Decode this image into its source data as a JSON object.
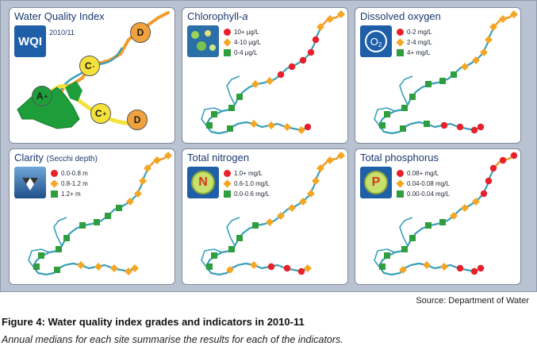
{
  "panels": {
    "wqi": {
      "title": "Water Quality Index",
      "icon_label": "WQI",
      "year": "2010/11",
      "grades": [
        {
          "label": "A",
          "sup": "+",
          "color": "#1e9e3a"
        },
        {
          "label": "C",
          "sup": "-",
          "color": "#f4e23a"
        },
        {
          "label": "C",
          "sup": "+",
          "color": "#f4e23a"
        },
        {
          "label": "D",
          "sup": "",
          "color": "#f2a23c"
        },
        {
          "label": "D",
          "sup": "",
          "color": "#f2a23c"
        }
      ]
    },
    "chlorophyll": {
      "title_main": "Chlorophyll-",
      "title_italic": "a",
      "legend": [
        "10+ μg/L",
        "4-10 μg/L",
        "0-4 μg/L"
      ]
    },
    "oxygen": {
      "title": "Dissolved oxygen",
      "icon_label": "O",
      "icon_sub": "2",
      "legend": [
        "0-2 mg/L",
        "2-4 mg/L",
        "4+ mg/L"
      ]
    },
    "clarity": {
      "title_main": "Clarity",
      "title_sub": "(Secchi depth)",
      "legend": [
        "0.0-0.8 m",
        "0.8-1.2 m",
        "1.2+ m"
      ]
    },
    "nitrogen": {
      "title": "Total nitrogen",
      "icon_label": "N",
      "legend": [
        "1.0+ mg/L",
        "0.6-1.0 mg/L",
        "0.0-0.6 mg/L"
      ]
    },
    "phosphorus": {
      "title": "Total phosphorus",
      "icon_label": "P",
      "legend": [
        "0.08+ mg/L",
        "0.04-0.08 mg/L",
        "0.00-0.04 mg/L"
      ]
    }
  },
  "colors": {
    "red": "#e8202a",
    "orange": "#f5a623",
    "green": "#2e9e3e",
    "river": "#3aa0b8",
    "river_upper": "#f39a2a"
  },
  "source": "Source: Department of Water",
  "caption": "Figure 4: Water quality index grades and indicators in 2010-11",
  "subcaption": "Annual medians for each site summarise the results for each of the indicators."
}
